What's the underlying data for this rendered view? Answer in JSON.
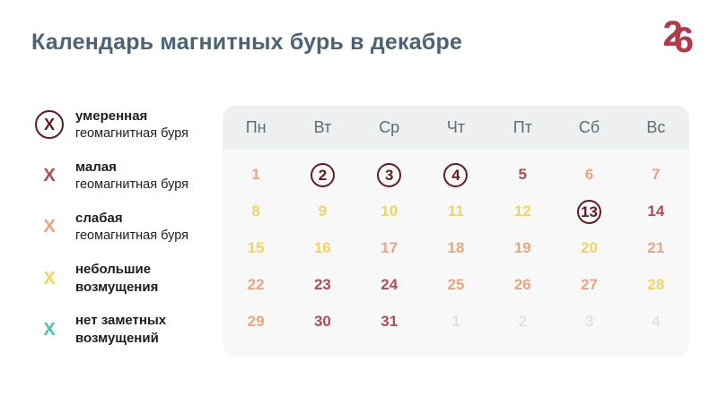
{
  "page": {
    "title": "Календарь магнитных бурь в декабре",
    "logo_digits": [
      "2",
      "6"
    ]
  },
  "colors": {
    "title": "#4b6374",
    "brand": "#b13a49",
    "moderate": "#5e1c23",
    "minor": "#b04b55",
    "weak": "#eaa482",
    "disturbances": "#f0d266",
    "none": "#4fc0a8",
    "next": "#d9d9da",
    "weekday_text": "#5b6b78",
    "legend_text": "#1d1d1f",
    "panel_header_bg": "#eef0ef",
    "panel_body_bg": "#f7f8f7",
    "page_bg": "#ffffff"
  },
  "legend": {
    "symbol": "X",
    "items": [
      {
        "id": "moderate",
        "circled": true,
        "line1": "умеренная",
        "line2": "геомагнитная буря",
        "line2_bold": false
      },
      {
        "id": "minor",
        "circled": false,
        "line1": "малая",
        "line2": "геомагнитная буря",
        "line2_bold": false
      },
      {
        "id": "weak",
        "circled": false,
        "line1": "слабая",
        "line2": "геомагнитная буря",
        "line2_bold": false
      },
      {
        "id": "disturbances",
        "circled": false,
        "line1": "небольшие",
        "line2": "возмущения",
        "line2_bold": true
      },
      {
        "id": "none",
        "circled": false,
        "line1": "нет заметных",
        "line2": "возмущений",
        "line2_bold": true
      }
    ]
  },
  "calendar": {
    "weekdays": [
      "Пн",
      "Вт",
      "Ср",
      "Чт",
      "Пт",
      "Сб",
      "Вс"
    ],
    "weeks": [
      [
        {
          "day": "1",
          "level": "weak"
        },
        {
          "day": "2",
          "level": "moderate",
          "circled": true
        },
        {
          "day": "3",
          "level": "moderate",
          "circled": true
        },
        {
          "day": "4",
          "level": "moderate",
          "circled": true
        },
        {
          "day": "5",
          "level": "minor"
        },
        {
          "day": "6",
          "level": "weak"
        },
        {
          "day": "7",
          "level": "weak"
        }
      ],
      [
        {
          "day": "8",
          "level": "disturbances"
        },
        {
          "day": "9",
          "level": "disturbances"
        },
        {
          "day": "10",
          "level": "disturbances"
        },
        {
          "day": "11",
          "level": "disturbances"
        },
        {
          "day": "12",
          "level": "disturbances"
        },
        {
          "day": "13",
          "level": "moderate",
          "circled": true
        },
        {
          "day": "14",
          "level": "minor"
        }
      ],
      [
        {
          "day": "15",
          "level": "disturbances"
        },
        {
          "day": "16",
          "level": "disturbances"
        },
        {
          "day": "17",
          "level": "weak"
        },
        {
          "day": "18",
          "level": "weak"
        },
        {
          "day": "19",
          "level": "weak"
        },
        {
          "day": "20",
          "level": "disturbances"
        },
        {
          "day": "21",
          "level": "weak"
        }
      ],
      [
        {
          "day": "22",
          "level": "weak"
        },
        {
          "day": "23",
          "level": "minor"
        },
        {
          "day": "24",
          "level": "minor"
        },
        {
          "day": "25",
          "level": "weak"
        },
        {
          "day": "26",
          "level": "weak"
        },
        {
          "day": "27",
          "level": "weak"
        },
        {
          "day": "28",
          "level": "disturbances"
        }
      ],
      [
        {
          "day": "29",
          "level": "weak"
        },
        {
          "day": "30",
          "level": "minor"
        },
        {
          "day": "31",
          "level": "minor"
        },
        {
          "day": "1",
          "level": "next",
          "next_month": true
        },
        {
          "day": "2",
          "level": "next",
          "next_month": true
        },
        {
          "day": "3",
          "level": "next",
          "next_month": true
        },
        {
          "day": "4",
          "level": "next",
          "next_month": true
        }
      ]
    ]
  },
  "chart_data": {
    "type": "heatmap",
    "title": "Календарь магнитных бурь в декабре",
    "x_labels": [
      "Пн",
      "Вт",
      "Ср",
      "Чт",
      "Пт",
      "Сб",
      "Вс"
    ],
    "legend": [
      {
        "level": "moderate",
        "label": "умеренная геомагнитная буря",
        "color": "#5e1c23",
        "circled": true
      },
      {
        "level": "minor",
        "label": "малая геомагнитная буря",
        "color": "#b04b55",
        "circled": false
      },
      {
        "level": "weak",
        "label": "слабая геомагнитная буря",
        "color": "#eaa482",
        "circled": false
      },
      {
        "level": "disturbances",
        "label": "небольшие возмущения",
        "color": "#f0d266",
        "circled": false
      },
      {
        "level": "none",
        "label": "нет заметных возмущений",
        "color": "#4fc0a8",
        "circled": false
      }
    ],
    "values": {
      "1": "weak",
      "2": "moderate",
      "3": "moderate",
      "4": "moderate",
      "5": "minor",
      "6": "weak",
      "7": "weak",
      "8": "disturbances",
      "9": "disturbances",
      "10": "disturbances",
      "11": "disturbances",
      "12": "disturbances",
      "13": "moderate",
      "14": "minor",
      "15": "disturbances",
      "16": "disturbances",
      "17": "weak",
      "18": "weak",
      "19": "weak",
      "20": "disturbances",
      "21": "weak",
      "22": "weak",
      "23": "minor",
      "24": "minor",
      "25": "weak",
      "26": "weak",
      "27": "weak",
      "28": "disturbances",
      "29": "weak",
      "30": "minor",
      "31": "minor"
    },
    "circled_days": [
      2,
      3,
      4,
      13
    ],
    "next_month_days": [
      1,
      2,
      3,
      4
    ],
    "layout": {
      "legend_position": "left",
      "grid": "7-column week grid, 5 rows"
    }
  }
}
